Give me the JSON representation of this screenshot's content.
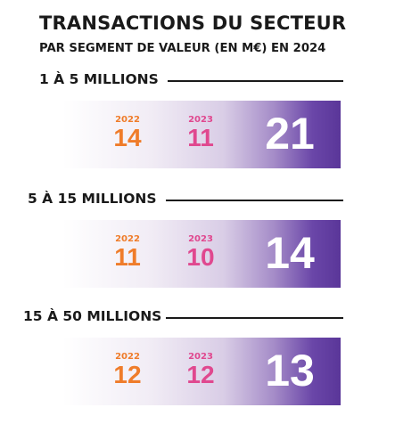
{
  "title": "TRANSACTIONS DU SECTEUR",
  "subtitle": "PAR SEGMENT DE VALEUR (EN M€) EN 2024",
  "colors": {
    "y2022": "#ef7c2a",
    "y2023": "#e0488f",
    "y2024_band": "#5a3699"
  },
  "chart_data": {
    "type": "table",
    "title": "TRANSACTIONS DU SECTEUR",
    "subtitle": "PAR SEGMENT DE VALEUR (EN M€) EN 2024",
    "years": [
      "2022",
      "2023",
      "2024"
    ],
    "segments": [
      {
        "label": "1 À 5 MILLIONS",
        "y2022_label": "2022",
        "y2022": "14",
        "y2023_label": "2023",
        "y2023": "11",
        "y2024": "21"
      },
      {
        "label": "5 À 15 MILLIONS",
        "y2022_label": "2022",
        "y2022": "11",
        "y2023_label": "2023",
        "y2023": "10",
        "y2024": "14"
      },
      {
        "label": "15 À 50 MILLIONS",
        "y2022_label": "2022",
        "y2022": "12",
        "y2023_label": "2023",
        "y2023": "12",
        "y2024": "13"
      }
    ]
  }
}
